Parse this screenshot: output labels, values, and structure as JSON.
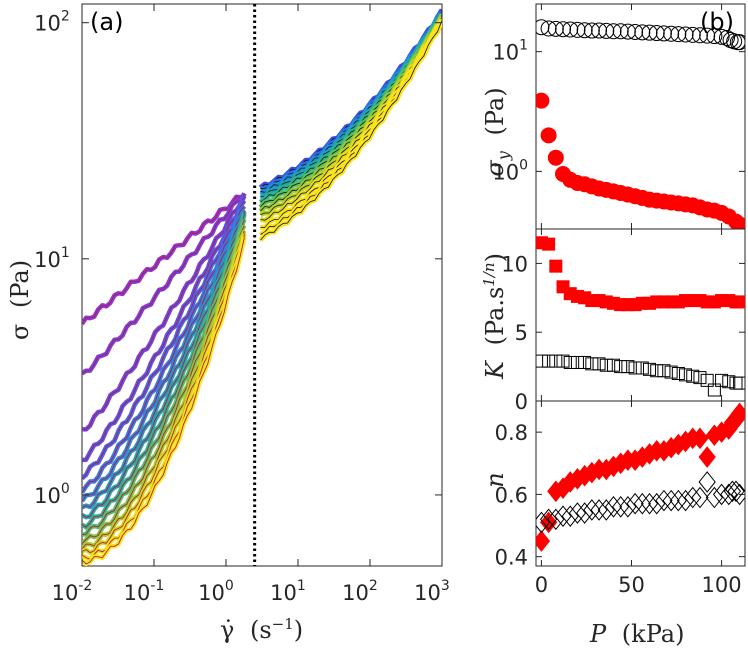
{
  "chart_data": [
    {
      "panel_label": "(a)",
      "type": "line",
      "xscale": "log",
      "yscale": "log",
      "xlim": [
        0.01,
        1000
      ],
      "ylim": [
        0.5,
        120
      ],
      "xlabel_symbol": "γ̇",
      "xlabel_unit": "(s",
      "xlabel_exp": "−1",
      "xlabel_close": ")",
      "ylabel_symbol": "σ",
      "ylabel_unit": "(Pa)",
      "x_ticks": [
        0.01,
        0.1,
        1,
        10,
        100,
        1000
      ],
      "x_tick_base": "10",
      "x_tick_exponents": [
        "-2",
        "-1",
        "0",
        "1",
        "2",
        "3"
      ],
      "y_ticks": [
        1,
        10,
        100
      ],
      "y_tick_base": "10",
      "y_tick_exponents": [
        "0",
        "1",
        "2"
      ],
      "vline_x": 2.5,
      "low_rate_branch": {
        "description": "flow curves below the dotted line, one per pressure; colour violet (low P) to yellow (high P)",
        "x": [
          0.01,
          1.8
        ],
        "curves": [
          {
            "y_start": 5.3,
            "y_end": 19,
            "color": "#8c37d6"
          },
          {
            "y_start": 3.2,
            "y_end": 19,
            "color": "#7a3fe0"
          },
          {
            "y_start": 1.85,
            "y_end": 18.5,
            "color": "#6b48e6"
          },
          {
            "y_start": 1.4,
            "y_end": 18,
            "color": "#5a55ea"
          },
          {
            "y_start": 1.2,
            "y_end": 17.5,
            "color": "#4a63ec"
          },
          {
            "y_start": 1.05,
            "y_end": 17,
            "color": "#3b74e8"
          },
          {
            "y_start": 0.95,
            "y_end": 16.5,
            "color": "#2f86dc"
          },
          {
            "y_start": 0.87,
            "y_end": 16,
            "color": "#2596c9"
          },
          {
            "y_start": 0.8,
            "y_end": 15.5,
            "color": "#22a5b1"
          },
          {
            "y_start": 0.74,
            "y_end": 15,
            "color": "#31b292"
          },
          {
            "y_start": 0.69,
            "y_end": 14.5,
            "color": "#55bd6e"
          },
          {
            "y_start": 0.64,
            "y_end": 14,
            "color": "#80c64b"
          },
          {
            "y_start": 0.6,
            "y_end": 13.5,
            "color": "#abd02e"
          },
          {
            "y_start": 0.57,
            "y_end": 13,
            "color": "#d2d81c"
          },
          {
            "y_start": 0.54,
            "y_end": 12.5,
            "color": "#f0e01a"
          },
          {
            "y_start": 0.52,
            "y_end": 12,
            "color": "#fbe51e"
          }
        ]
      },
      "high_rate_branch": {
        "description": "flow curves above the dotted line; colour blue (low P) to black/yellow",
        "x": [
          3,
          1000
        ],
        "curves": [
          {
            "y_start": 20,
            "y_end": 112,
            "color": "#3d4ee0"
          },
          {
            "y_start": 19.5,
            "y_end": 111,
            "color": "#2d6fe4"
          },
          {
            "y_start": 19,
            "y_end": 110,
            "color": "#1f8fd6"
          },
          {
            "y_start": 18.3,
            "y_end": 109,
            "color": "#1aa6b8"
          },
          {
            "y_start": 17.6,
            "y_end": 108,
            "color": "#2cb48f"
          },
          {
            "y_start": 16.8,
            "y_end": 107,
            "color": "#57bf63"
          },
          {
            "y_start": 16,
            "y_end": 106,
            "color": "#8ac93f"
          },
          {
            "y_start": 15.2,
            "y_end": 105,
            "color": "#b9d22a"
          },
          {
            "y_start": 14.4,
            "y_end": 104,
            "color": "#e2da1c"
          },
          {
            "y_start": 13.5,
            "y_end": 103,
            "color": "#fbe41e"
          },
          {
            "y_start": 12.8,
            "y_end": 102,
            "color": "#fbe41e"
          },
          {
            "y_start": 12.2,
            "y_end": 101,
            "color": "#fbe41e"
          }
        ]
      }
    },
    {
      "panel_label": "(b)",
      "type": "scatter",
      "xlabel_symbol": "P",
      "xlabel_unit": "(kPa)",
      "xlim": [
        -3,
        113
      ],
      "x_ticks": [
        0,
        50,
        100
      ],
      "x_tick_labels": [
        "0",
        "50",
        "100"
      ],
      "subplots": [
        {
          "ylabel_symbol": "σ",
          "ylabel_sub": "y",
          "ylabel_unit": "(Pa)",
          "yscale": "log",
          "ylim": [
            0.33,
            25
          ],
          "y_ticks": [
            1,
            10
          ],
          "y_tick_base": "10",
          "y_tick_exponents": [
            "0",
            "1"
          ],
          "series": [
            {
              "name": "open",
              "marker": "circle",
              "filled": false,
              "color": "#000000",
              "x": [
                0,
                4,
                8,
                12,
                16,
                20,
                24,
                28,
                32,
                36,
                40,
                44,
                48,
                52,
                56,
                60,
                64,
                68,
                72,
                76,
                80,
                84,
                88,
                92,
                96,
                100,
                103,
                105,
                107,
                109,
                110
              ],
              "y": [
                16,
                15.6,
                15.5,
                15.4,
                15.3,
                15.2,
                15.1,
                15.0,
                15.0,
                14.9,
                14.8,
                14.8,
                14.7,
                14.6,
                14.5,
                14.4,
                14.3,
                14.2,
                14.1,
                14.0,
                13.9,
                13.8,
                13.7,
                13.6,
                13.5,
                13.3,
                13.0,
                12.5,
                12.2,
                12.0,
                12.0
              ]
            },
            {
              "name": "filled",
              "marker": "circle",
              "filled": true,
              "color": "#ff0000",
              "x": [
                0,
                4,
                8,
                12,
                16,
                20,
                24,
                28,
                32,
                36,
                40,
                44,
                48,
                52,
                56,
                60,
                64,
                68,
                72,
                76,
                80,
                84,
                88,
                92,
                96,
                100,
                104,
                108,
                110
              ],
              "y": [
                3.9,
                2.0,
                1.3,
                0.95,
                0.85,
                0.8,
                0.78,
                0.75,
                0.72,
                0.7,
                0.68,
                0.66,
                0.64,
                0.62,
                0.6,
                0.58,
                0.57,
                0.56,
                0.55,
                0.54,
                0.53,
                0.52,
                0.5,
                0.48,
                0.47,
                0.45,
                0.42,
                0.38,
                0.36
              ]
            }
          ]
        },
        {
          "ylabel_symbol": "K",
          "ylabel_unit": "(Pa.s",
          "ylabel_exp": "1/n",
          "ylabel_close": ")",
          "yscale": "linear",
          "ylim": [
            0,
            12.5
          ],
          "y_ticks": [
            0,
            5,
            10
          ],
          "y_tick_labels": [
            "0",
            "5",
            "10"
          ],
          "series": [
            {
              "name": "filled",
              "marker": "square",
              "filled": true,
              "color": "#ff0000",
              "x": [
                0,
                4,
                8,
                12,
                16,
                20,
                24,
                28,
                32,
                36,
                40,
                44,
                48,
                52,
                56,
                60,
                64,
                68,
                72,
                76,
                80,
                84,
                88,
                92,
                96,
                100,
                104,
                108,
                110
              ],
              "y": [
                11.5,
                11.4,
                9.8,
                8.3,
                7.8,
                7.6,
                7.5,
                7.3,
                7.3,
                7.2,
                7.1,
                7.0,
                7.0,
                7.0,
                7.1,
                7.1,
                7.2,
                7.2,
                7.2,
                7.2,
                7.3,
                7.3,
                7.3,
                7.2,
                7.2,
                7.3,
                7.3,
                7.2,
                7.2
              ]
            },
            {
              "name": "open",
              "marker": "square",
              "filled": false,
              "color": "#000000",
              "x": [
                0,
                4,
                8,
                12,
                16,
                20,
                24,
                28,
                32,
                36,
                40,
                44,
                48,
                52,
                56,
                60,
                64,
                68,
                72,
                76,
                80,
                84,
                88,
                92,
                96,
                100,
                104,
                108,
                110
              ],
              "y": [
                2.9,
                2.9,
                2.9,
                2.9,
                2.8,
                2.8,
                2.8,
                2.7,
                2.7,
                2.6,
                2.6,
                2.5,
                2.5,
                2.4,
                2.4,
                2.3,
                2.2,
                2.2,
                2.1,
                2.0,
                1.9,
                1.8,
                1.7,
                1.5,
                0.8,
                1.5,
                1.4,
                1.3,
                1.3
              ]
            }
          ]
        },
        {
          "ylabel_symbol": "n",
          "yscale": "linear",
          "ylim": [
            0.37,
            0.9
          ],
          "y_ticks": [
            0.4,
            0.6,
            0.8
          ],
          "y_tick_labels": [
            "0.4",
            "0.6",
            "0.8"
          ],
          "series": [
            {
              "name": "filled",
              "marker": "diamond",
              "filled": true,
              "color": "#ff0000",
              "x": [
                0,
                4,
                8,
                12,
                16,
                20,
                24,
                28,
                32,
                36,
                40,
                44,
                48,
                52,
                56,
                60,
                64,
                68,
                72,
                76,
                80,
                84,
                88,
                92,
                96,
                100,
                104,
                106,
                108,
                110
              ],
              "y": [
                0.45,
                0.51,
                0.61,
                0.62,
                0.64,
                0.65,
                0.66,
                0.67,
                0.68,
                0.68,
                0.69,
                0.7,
                0.71,
                0.71,
                0.72,
                0.73,
                0.74,
                0.74,
                0.75,
                0.76,
                0.77,
                0.78,
                0.78,
                0.72,
                0.79,
                0.8,
                0.81,
                0.83,
                0.84,
                0.86
              ]
            },
            {
              "name": "open",
              "marker": "diamond",
              "filled": false,
              "color": "#000000",
              "x": [
                0,
                4,
                8,
                12,
                16,
                20,
                24,
                28,
                32,
                36,
                40,
                44,
                48,
                52,
                56,
                60,
                64,
                68,
                72,
                76,
                80,
                84,
                88,
                92,
                96,
                100,
                104,
                106,
                108,
                110
              ],
              "y": [
                0.51,
                0.52,
                0.52,
                0.53,
                0.53,
                0.54,
                0.54,
                0.55,
                0.55,
                0.55,
                0.56,
                0.56,
                0.56,
                0.57,
                0.57,
                0.57,
                0.57,
                0.58,
                0.58,
                0.58,
                0.58,
                0.59,
                0.59,
                0.64,
                0.59,
                0.6,
                0.6,
                0.61,
                0.61,
                0.6
              ]
            }
          ]
        }
      ]
    }
  ]
}
